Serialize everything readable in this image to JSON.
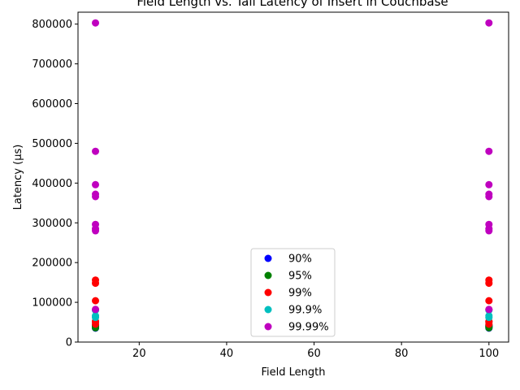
{
  "chart_data": {
    "type": "scatter",
    "title": "Field Length vs. Tail Latency of Insert in Couchbase",
    "xlabel": "Field Length",
    "ylabel": "Latency (µs)",
    "xlim": [
      6,
      104.5
    ],
    "ylim": [
      0,
      830000
    ],
    "xticks": [
      20,
      40,
      60,
      80,
      100
    ],
    "yticks": [
      0,
      100000,
      200000,
      300000,
      400000,
      500000,
      600000,
      700000,
      800000
    ],
    "grid": false,
    "legend_position": "bottom-center",
    "series": [
      {
        "name": "90%",
        "color": "#0000ff",
        "x": [
          10,
          10,
          10,
          10,
          100,
          100,
          100,
          100
        ],
        "y": [
          35000,
          38000,
          40000,
          42000,
          35000,
          38000,
          40000,
          42000
        ]
      },
      {
        "name": "95%",
        "color": "#008000",
        "x": [
          10,
          10,
          10,
          10,
          100,
          100,
          100,
          100
        ],
        "y": [
          36000,
          38000,
          40000,
          43000,
          36000,
          38000,
          40000,
          43000
        ]
      },
      {
        "name": "99%",
        "color": "#ff0000",
        "x": [
          10,
          10,
          10,
          10,
          10,
          10,
          10,
          100,
          100,
          100,
          100,
          100,
          100,
          100
        ],
        "y": [
          45000,
          50000,
          52000,
          82000,
          104000,
          148000,
          156000,
          45000,
          50000,
          52000,
          82000,
          104000,
          148000,
          156000
        ]
      },
      {
        "name": "99.9%",
        "color": "#00bfbf",
        "x": [
          10,
          10,
          10,
          100,
          100,
          100
        ],
        "y": [
          62000,
          66000,
          80000,
          62000,
          66000,
          80000
        ]
      },
      {
        "name": "99.99%",
        "color": "#bf00bf",
        "x": [
          10,
          10,
          10,
          10,
          10,
          10,
          10,
          10,
          10,
          100,
          100,
          100,
          100,
          100,
          100,
          100,
          100,
          100
        ],
        "y": [
          82000,
          280000,
          285000,
          296000,
          366000,
          372000,
          396000,
          480000,
          803000,
          82000,
          280000,
          285000,
          296000,
          366000,
          372000,
          396000,
          480000,
          803000
        ]
      }
    ]
  }
}
